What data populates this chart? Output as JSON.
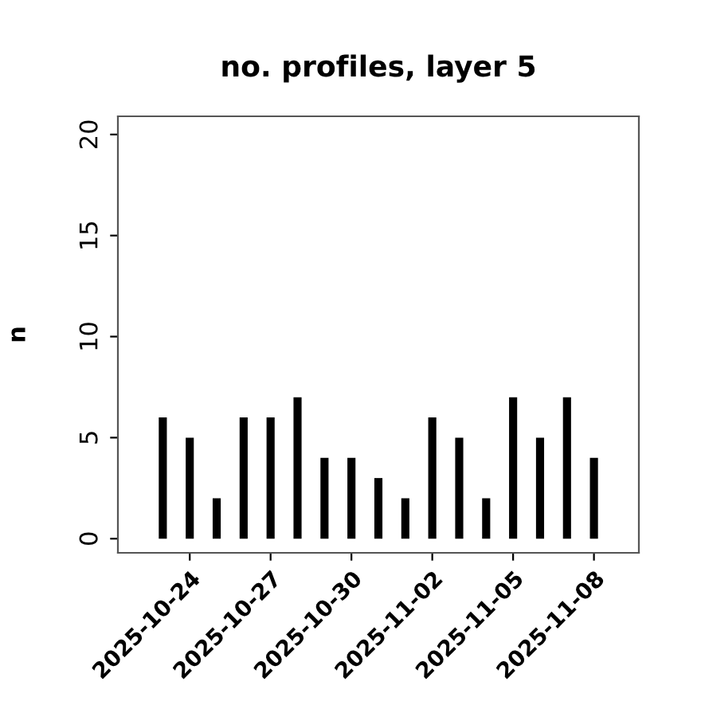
{
  "chart_data": {
    "type": "bar",
    "title": "no. profiles, layer 5",
    "ylabel": "n",
    "x": [
      "2025-10-23",
      "2025-10-24",
      "2025-10-25",
      "2025-10-26",
      "2025-10-27",
      "2025-10-28",
      "2025-10-29",
      "2025-10-30",
      "2025-10-31",
      "2025-11-01",
      "2025-11-02",
      "2025-11-03",
      "2025-11-04",
      "2025-11-05",
      "2025-11-06",
      "2025-11-07",
      "2025-11-08"
    ],
    "values": [
      6,
      5,
      2,
      6,
      6,
      7,
      4,
      4,
      3,
      2,
      6,
      5,
      2,
      7,
      5,
      7,
      4
    ],
    "color": "#000000",
    "xlim": [
      "2025-10-21T08:00",
      "2025-11-09T16:00"
    ],
    "xticks": [
      "2025-10-24",
      "2025-10-27",
      "2025-10-30",
      "2025-11-02",
      "2025-11-05",
      "2025-11-08"
    ],
    "ylim": [
      -0.7,
      20.9
    ],
    "yticks": [
      0,
      5,
      10,
      15,
      20
    ],
    "grid": false,
    "legend": false
  }
}
